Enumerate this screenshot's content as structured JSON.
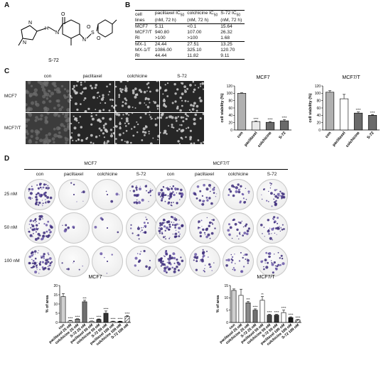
{
  "panels": {
    "A": "A",
    "B": "B",
    "C": "C",
    "D": "D"
  },
  "compound": {
    "name": "S-72"
  },
  "table": {
    "headers": [
      "cell lines",
      "paclitaxel IC50 (nM, 72 h)",
      "colchicine IC50 (nM, 72 h)",
      "S-72 IC50 (nM, 72 h)"
    ],
    "header_lines": [
      [
        "cell",
        "paclitaxel IC",
        "colchicine IC",
        "S-72 IC"
      ],
      [
        "lines",
        "(nM, 72 h)",
        "(nM, 72 h)",
        "(nM, 72 h)"
      ]
    ],
    "rows": [
      [
        "MCF7",
        "5.11",
        "<0.1",
        "15.64"
      ],
      [
        "MCF7/T",
        "940.80",
        "107.00",
        "26.32"
      ],
      [
        "RI",
        ">100",
        ">100",
        "1.68"
      ],
      [
        "MX-1",
        "24.44",
        "27.51",
        "13.25"
      ],
      [
        "MX-1/T",
        "1086.00",
        "325.10",
        "120.70"
      ],
      [
        "RI",
        "44.44",
        "11.82",
        "9.11"
      ]
    ],
    "subscript": "50"
  },
  "micrographs": {
    "columns": [
      "con",
      "paclitaxel",
      "colchicine",
      "S-72"
    ],
    "rows": [
      "MCF7",
      "MCF7/T"
    ]
  },
  "chart_data": [
    {
      "type": "bar",
      "title": "MCF7",
      "ylabel": "cell viability (%)",
      "ylim": [
        0,
        120
      ],
      "yticks": [
        0,
        20,
        40,
        60,
        80,
        100,
        120
      ],
      "categories": [
        "con",
        "paclitaxel",
        "colchicine",
        "S-72"
      ],
      "values": [
        100,
        23,
        21,
        25
      ],
      "significance": [
        "",
        "****",
        "****",
        "****"
      ],
      "colors": [
        "#b0b0b0",
        "#e8e8e8",
        "#6a6a6a",
        "#6a6a6a"
      ]
    },
    {
      "type": "bar",
      "title": "MCF7/T",
      "ylabel": "cell viability (%)",
      "ylim": [
        0,
        120
      ],
      "yticks": [
        0,
        20,
        40,
        60,
        80,
        100,
        120
      ],
      "categories": [
        "con",
        "paclitaxel",
        "colchicine",
        "S-72"
      ],
      "values": [
        103,
        85,
        46,
        40
      ],
      "significance": [
        "",
        "",
        "****",
        "****"
      ],
      "colors": [
        "#b0b0b0",
        "#ffffff",
        "#6a6a6a",
        "#6a6a6a"
      ]
    },
    {
      "type": "bar",
      "title": "MCF7",
      "ylabel": "% of area",
      "ylim": [
        0,
        20
      ],
      "yticks": [
        0,
        5,
        10,
        15,
        20
      ],
      "categories": [
        "con",
        "paclitaxel 25 nM",
        "colchicine 25 nM",
        "S-72 25 nM",
        "paclitaxel 50 nM",
        "colchicine 50 nM",
        "S-72 50 nM",
        "paclitaxel 100 nM",
        "colchicine 100 nM",
        "S-72 100 nM"
      ],
      "values": [
        14,
        0.8,
        1.8,
        11.2,
        0.6,
        1.6,
        5.0,
        0.5,
        0.5,
        3.3
      ],
      "significance": [
        "",
        "****",
        "****",
        "***",
        "****",
        "****",
        "****",
        "****",
        "****",
        "****"
      ]
    },
    {
      "type": "bar",
      "title": "MCF7/T",
      "ylabel": "% of area",
      "ylim": [
        0,
        15
      ],
      "yticks": [
        0,
        5,
        10,
        15
      ],
      "categories": [
        "con",
        "paclitaxel 25 nM",
        "colchicine 25 nM",
        "S-72 25 nM",
        "paclitaxel 50 nM",
        "colchicine 50 nM",
        "S-72 50 nM",
        "paclitaxel 100 nM",
        "colchicine 100 nM",
        "S-72 100 nM"
      ],
      "values": [
        13,
        11,
        8,
        5,
        9,
        3,
        3,
        4,
        2,
        1
      ],
      "significance": [
        "",
        "",
        "***",
        "****",
        "**",
        "****",
        "****",
        "****",
        "****",
        "****"
      ]
    }
  ],
  "colonies": {
    "groups": [
      "MCF7",
      "MCF7/T"
    ],
    "columns": [
      "con",
      "paclitaxel",
      "colchicine",
      "S-72"
    ],
    "rows": [
      "25 nM",
      "50 nM",
      "100 nM"
    ]
  }
}
